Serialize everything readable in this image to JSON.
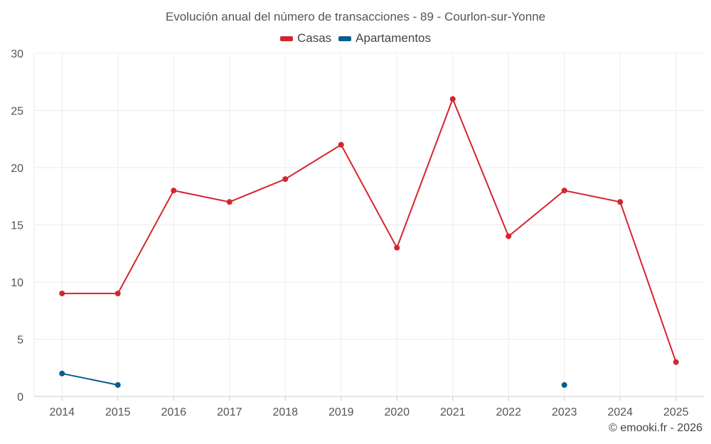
{
  "chart_data": {
    "type": "line",
    "title": "Evolución anual del número de transacciones - 89 - Courlon-sur-Yonne",
    "categories": [
      "2014",
      "2015",
      "2016",
      "2017",
      "2018",
      "2019",
      "2020",
      "2021",
      "2022",
      "2023",
      "2024",
      "2025"
    ],
    "series": [
      {
        "name": "Casas",
        "color": "#d3262c",
        "values": [
          9,
          9,
          18,
          17,
          19,
          22,
          13,
          26,
          14,
          18,
          17,
          3
        ]
      },
      {
        "name": "Apartamentos",
        "color": "#0a5d8f",
        "values": [
          2,
          1,
          null,
          null,
          null,
          null,
          null,
          null,
          null,
          1,
          null,
          null
        ]
      }
    ],
    "ylim": [
      0,
      30
    ],
    "yticks": [
      0,
      5,
      10,
      15,
      20,
      25,
      30
    ],
    "xlabel": "",
    "ylabel": "",
    "grid": true,
    "legend_position": "top-center"
  },
  "credit": "© emooki.fr - 2026"
}
